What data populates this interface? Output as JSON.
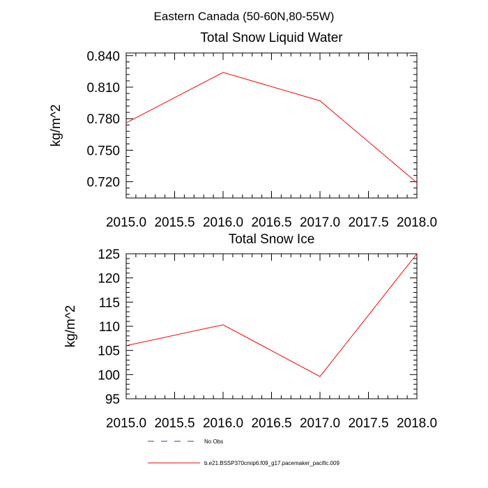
{
  "suptitle": "Eastern Canada (50-60N,80-55W)",
  "chart_data": [
    {
      "type": "line",
      "title": "Total Snow Liquid Water",
      "xlabel": "",
      "ylabel": "kg/m^2",
      "x": [
        2015.0,
        2016.0,
        2017.0,
        2018.0
      ],
      "xlim": [
        2015.0,
        2018.0
      ],
      "ylim": [
        0.7045,
        0.8425
      ],
      "xticks": [
        2015.0,
        2015.5,
        2016.0,
        2016.5,
        2017.0,
        2017.5,
        2018.0
      ],
      "xtick_labels": [
        "2015.0",
        "2015.5",
        "2016.0",
        "2016.5",
        "2017.0",
        "2017.5",
        "2018.0"
      ],
      "yticks": [
        0.72,
        0.75,
        0.78,
        0.81,
        0.84
      ],
      "ytick_labels": [
        "0.720",
        "0.750",
        "0.780",
        "0.810",
        "0.840"
      ],
      "yminor_step": 0.006,
      "series": [
        {
          "name": "b.e21.BSSP370cmip6.f09_g17.pacemaker_pacific.009",
          "color": "#ff0000",
          "values": [
            0.776,
            0.824,
            0.797,
            0.719
          ]
        }
      ]
    },
    {
      "type": "line",
      "title": "Total Snow Ice",
      "xlabel": "",
      "ylabel": "kg/m^2",
      "x": [
        2015.0,
        2016.0,
        2017.0,
        2018.0
      ],
      "xlim": [
        2015.0,
        2018.0
      ],
      "ylim": [
        95,
        125
      ],
      "xticks": [
        2015.0,
        2015.5,
        2016.0,
        2016.5,
        2017.0,
        2017.5,
        2018.0
      ],
      "xtick_labels": [
        "2015.0",
        "2015.5",
        "2016.0",
        "2016.5",
        "2017.0",
        "2017.5",
        "2018.0"
      ],
      "yticks": [
        95,
        100,
        105,
        110,
        115,
        120,
        125
      ],
      "ytick_labels": [
        "95",
        "100",
        "105",
        "110",
        "115",
        "120",
        "125"
      ],
      "yminor_step": 1,
      "series": [
        {
          "name": "b.e21.BSSP370cmip6.f09_g17.pacemaker_pacific.009",
          "color": "#ff0000",
          "values": [
            106.0,
            110.3,
            99.6,
            125.0
          ]
        }
      ]
    }
  ],
  "legend": [
    {
      "label": "No Obs",
      "color": "#3a3aa0",
      "dash": "dashed"
    },
    {
      "label": "b.e21.BSSP370cmip6.f09_g17.pacemaker_pacific.009",
      "color": "#ff0000",
      "dash": "solid"
    }
  ]
}
